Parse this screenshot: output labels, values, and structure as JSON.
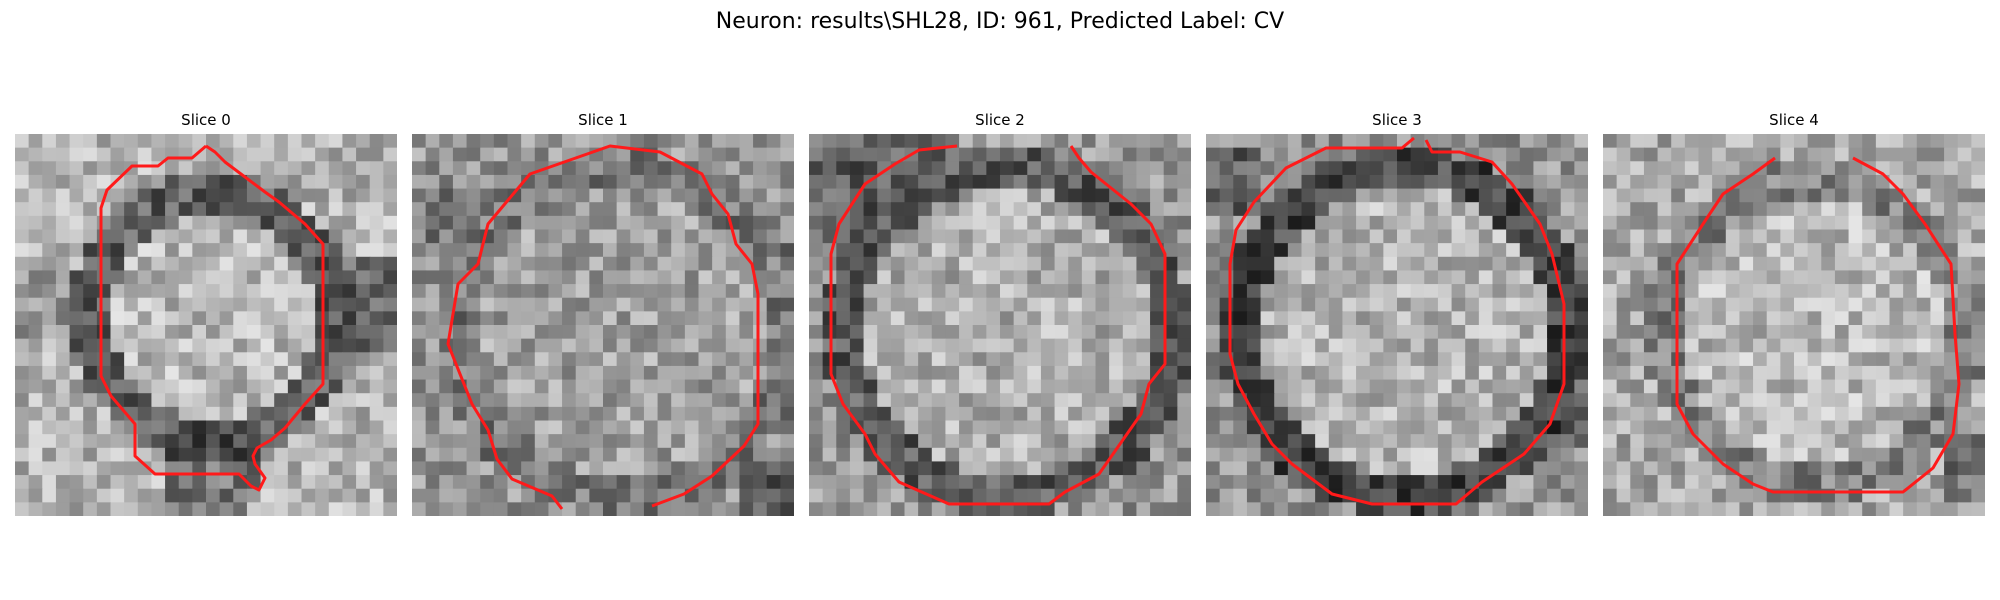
{
  "figure": {
    "title": "Neuron: results\\SHL28, ID: 961, Predicted Label: CV"
  },
  "colors": {
    "contour": "#ff1a1a",
    "background": "#ffffff"
  },
  "panels": [
    {
      "title": "Slice 0"
    },
    {
      "title": "Slice 1"
    },
    {
      "title": "Slice 2"
    },
    {
      "title": "Slice 3"
    },
    {
      "title": "Slice 4"
    }
  ]
}
